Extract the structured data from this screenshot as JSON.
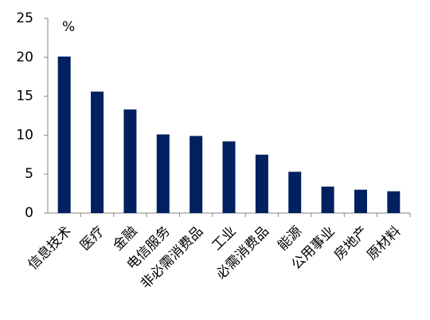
{
  "chart_data": {
    "type": "bar",
    "annotation": "%",
    "categories": [
      "信息技术",
      "医疗",
      "金融",
      "电信服务",
      "非必需消费品",
      "工业",
      "必需消费品",
      "能源",
      "公用事业",
      "房地产",
      "原材料"
    ],
    "values": [
      20.1,
      15.6,
      13.3,
      10.1,
      9.9,
      9.2,
      7.5,
      5.3,
      3.4,
      3.0,
      2.8
    ],
    "color": "#002060",
    "ylim": [
      0,
      25
    ],
    "yticks": [
      0,
      5,
      10,
      15,
      20,
      25
    ],
    "grid": false
  }
}
